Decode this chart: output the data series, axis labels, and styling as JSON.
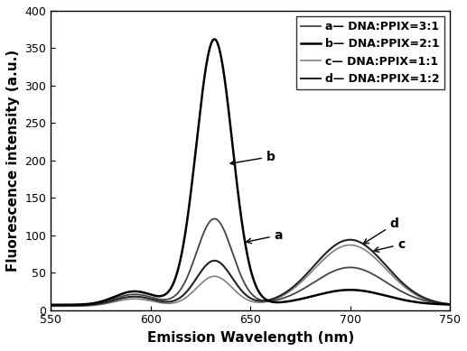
{
  "title": "",
  "xlabel": "Emission Wavelength (nm)",
  "ylabel": "Fluorescence intensity (a.u.)",
  "xlim": [
    550,
    750
  ],
  "ylim": [
    0,
    400
  ],
  "yticks": [
    0,
    50,
    100,
    150,
    200,
    250,
    300,
    350,
    400
  ],
  "xticks": [
    550,
    600,
    650,
    700,
    750
  ],
  "legend_labels": [
    "a— DNA:PPIX=3:1",
    "b— DNA:PPIX=2:1",
    "c— DNA:PPIX=1:1",
    "d— DNA:PPIX=1:2"
  ],
  "curve_colors": {
    "a": "#444444",
    "b": "#000000",
    "c": "#777777",
    "d": "#222222"
  },
  "curve_linewidths": {
    "a": 1.3,
    "b": 1.8,
    "c": 1.1,
    "d": 1.5
  },
  "background_color": "#ffffff",
  "annotation_fontsize": 10,
  "axis_fontsize": 11,
  "legend_fontsize": 9
}
